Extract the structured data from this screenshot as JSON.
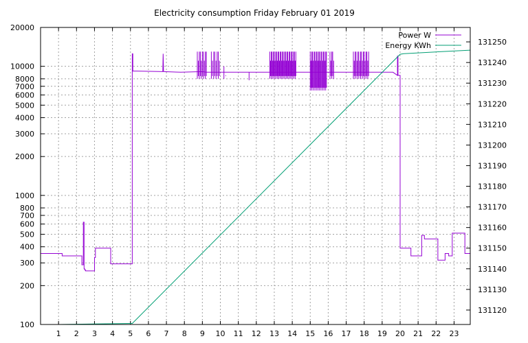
{
  "chart_data": {
    "type": "line",
    "title": "Electricity consumption Friday February 01 2019",
    "x": {
      "range": [
        0,
        23.9
      ],
      "ticks": [
        1,
        2,
        3,
        4,
        5,
        6,
        7,
        8,
        9,
        10,
        11,
        12,
        13,
        14,
        15,
        16,
        17,
        18,
        19,
        20,
        21,
        22,
        23
      ],
      "grid": true
    },
    "y_left": {
      "scale": "log",
      "range": [
        100,
        20000
      ],
      "ticks": [
        100,
        200,
        300,
        400,
        500,
        600,
        700,
        800,
        1000,
        2000,
        3000,
        4000,
        5000,
        6000,
        7000,
        8000,
        10000,
        20000
      ],
      "grid": true
    },
    "y_right": {
      "scale": "linear",
      "range": [
        131113,
        131257
      ],
      "ticks": [
        131120,
        131130,
        131140,
        131150,
        131160,
        131170,
        131180,
        131190,
        131200,
        131210,
        131220,
        131230,
        131240,
        131250
      ]
    },
    "legend": {
      "placement": "top-right"
    },
    "series": [
      {
        "name": "Power W",
        "axis": "left",
        "color": "#9400d3",
        "points": [
          [
            0,
            355
          ],
          [
            1.2,
            355
          ],
          [
            1.2,
            340
          ],
          [
            2.3,
            340
          ],
          [
            2.3,
            290
          ],
          [
            2.38,
            290
          ],
          [
            2.38,
            620
          ],
          [
            2.42,
            620
          ],
          [
            2.42,
            270
          ],
          [
            2.45,
            270
          ],
          [
            2.45,
            265
          ],
          [
            2.5,
            265
          ],
          [
            2.5,
            260
          ],
          [
            3.0,
            260
          ],
          [
            3.0,
            330
          ],
          [
            3.05,
            330
          ],
          [
            3.05,
            390
          ],
          [
            3.9,
            390
          ],
          [
            3.9,
            295
          ],
          [
            5.1,
            295
          ],
          [
            5.1,
            12500
          ],
          [
            5.13,
            12500
          ],
          [
            5.13,
            9200
          ],
          [
            6.8,
            9100
          ],
          [
            6.82,
            12500
          ],
          [
            6.84,
            9100
          ],
          [
            7.8,
            9000
          ],
          [
            9.0,
            9100
          ],
          [
            9.2,
            9000
          ],
          [
            11.0,
            9000
          ],
          [
            11.5,
            9000
          ],
          [
            12.5,
            9000
          ],
          [
            13.0,
            9000
          ],
          [
            14.0,
            9000
          ],
          [
            15.0,
            9000
          ],
          [
            16.0,
            9000
          ],
          [
            17.0,
            9000
          ],
          [
            18.0,
            9000
          ],
          [
            19.0,
            9000
          ],
          [
            19.6,
            9000
          ],
          [
            19.85,
            8500
          ],
          [
            19.85,
            12000
          ],
          [
            19.88,
            12000
          ],
          [
            19.88,
            8500
          ],
          [
            20.0,
            8500
          ],
          [
            20.0,
            390
          ],
          [
            20.6,
            390
          ],
          [
            20.6,
            340
          ],
          [
            21.2,
            340
          ],
          [
            21.2,
            490
          ],
          [
            21.35,
            490
          ],
          [
            21.35,
            460
          ],
          [
            22.1,
            460
          ],
          [
            22.1,
            315
          ],
          [
            22.5,
            315
          ],
          [
            22.5,
            355
          ],
          [
            22.7,
            355
          ],
          [
            22.7,
            340
          ],
          [
            22.9,
            340
          ],
          [
            22.9,
            510
          ],
          [
            23.6,
            510
          ],
          [
            23.6,
            355
          ],
          [
            23.9,
            355
          ]
        ],
        "spikes": [
          {
            "x": [
              8.72,
              9.22
            ],
            "high": 13000,
            "low": 8000,
            "count": 10
          },
          {
            "x": [
              9.5,
              9.95
            ],
            "high": 13000,
            "low": 8000,
            "count": 8
          },
          {
            "x": [
              10.2,
              10.3
            ],
            "high": 10000,
            "low": 8000,
            "count": 2
          },
          {
            "x": [
              11.6,
              11.62
            ],
            "high": 9000,
            "low": 7800,
            "count": 1
          },
          {
            "x": [
              12.75,
              14.2
            ],
            "high": 13000,
            "low": 8000,
            "count": 36
          },
          {
            "x": [
              15.0,
              15.9
            ],
            "high": 13000,
            "low": 6500,
            "count": 22
          },
          {
            "x": [
              16.1,
              16.3
            ],
            "high": 13000,
            "low": 8000,
            "count": 5
          },
          {
            "x": [
              17.4,
              18.25
            ],
            "high": 13000,
            "low": 8000,
            "count": 18
          }
        ]
      },
      {
        "name": "Energy KWh",
        "axis": "right",
        "color": "#009e73",
        "points": [
          [
            1.0,
            131113
          ],
          [
            5.0,
            131113.5
          ],
          [
            5.1,
            131113.5
          ],
          [
            20.0,
            131244
          ],
          [
            20.2,
            131244.3
          ],
          [
            23.9,
            131246
          ]
        ]
      }
    ]
  }
}
